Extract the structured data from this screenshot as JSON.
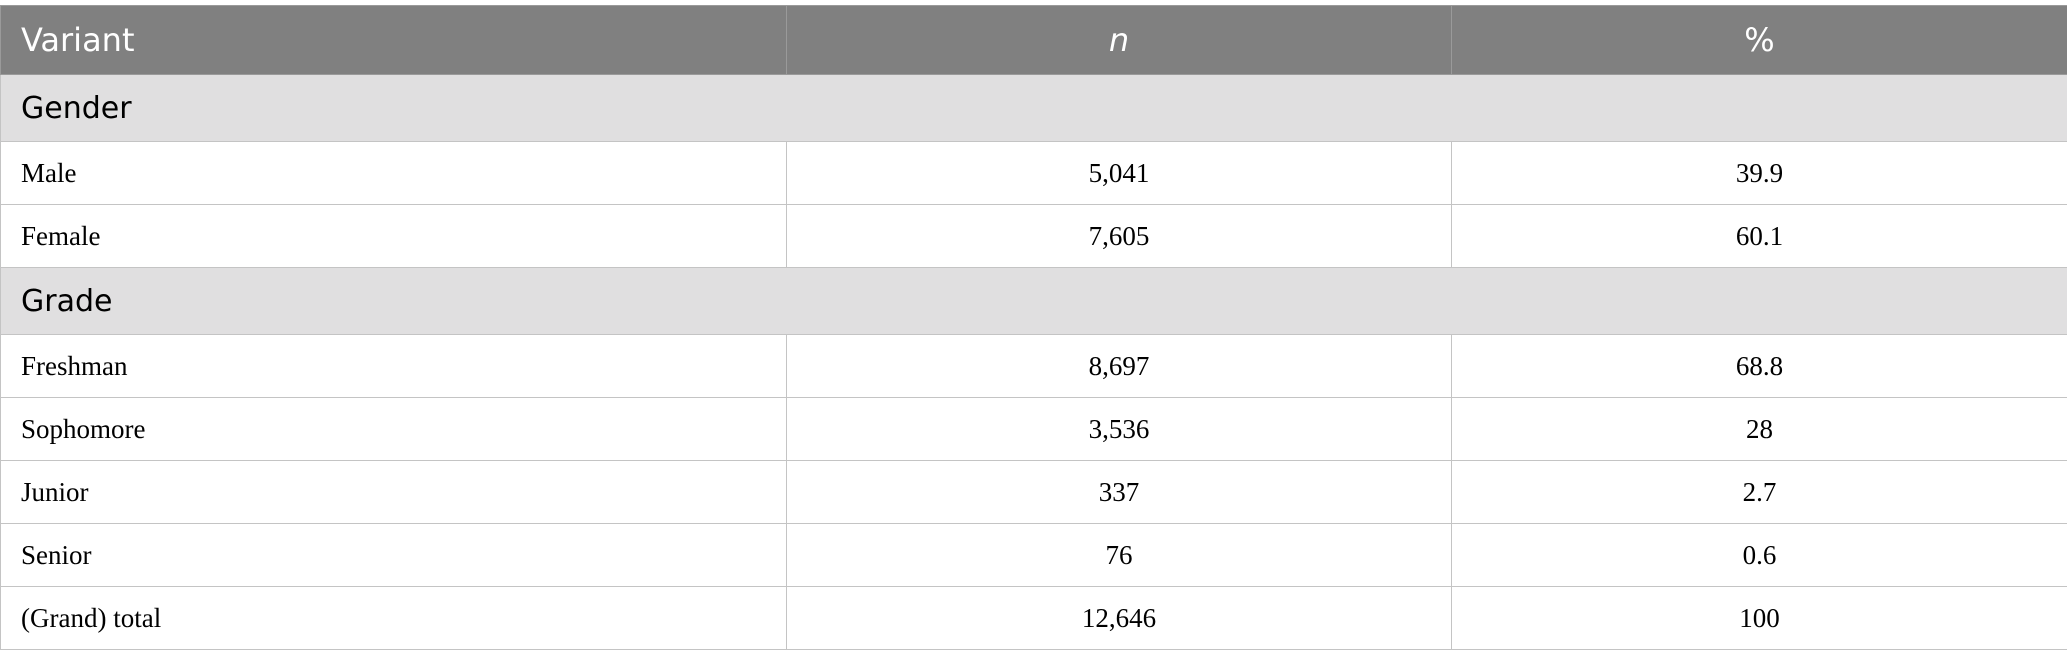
{
  "table": {
    "header": [
      "Variant",
      "n",
      "%"
    ],
    "sections": [
      {
        "title": "Gender",
        "rows": [
          [
            "Male",
            "5,041",
            "39.9"
          ],
          [
            "Female",
            "7,605",
            "60.1"
          ]
        ]
      },
      {
        "title": "Grade",
        "rows": [
          [
            "Freshman",
            "8,697",
            "68.8"
          ],
          [
            "Sophomore",
            "3,536",
            "28"
          ],
          [
            "Junior",
            "337",
            "2.7"
          ],
          [
            "Senior",
            "76",
            "0.6"
          ],
          [
            "(Grand) total",
            "12,646",
            "100"
          ]
        ]
      }
    ]
  }
}
